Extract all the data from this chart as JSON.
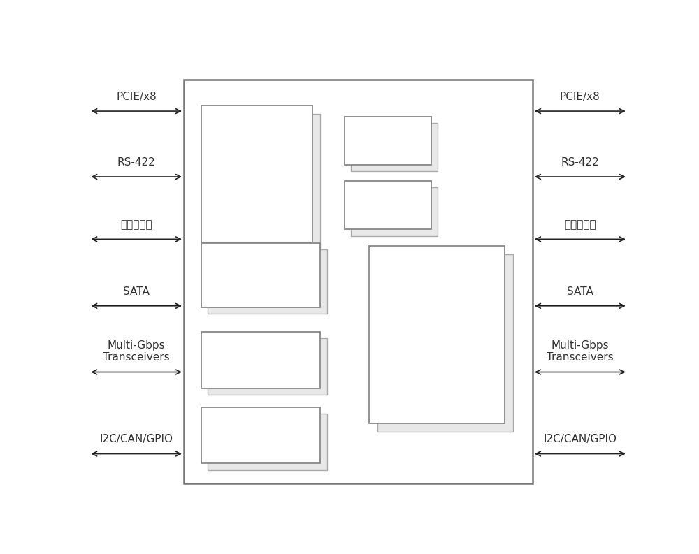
{
  "bg_color": "#ffffff",
  "border_color": "#666666",
  "box_edge_color": "#888888",
  "box_fill": "#ffffff",
  "shadow_edge": "#aaaaaa",
  "shadow_fill": "#e8e8e8",
  "text_color": "#333333",
  "aeroflex_text_color": "#558888",
  "sirf_text_color": "#555555",
  "arrow_color": "#222222",
  "left_labels": [
    "PCIE/x8",
    "RS-422",
    "以太网接口",
    "SATA",
    "Multi-Gbps\nTransceivers",
    "I2C/CAN/GPIO"
  ],
  "right_labels": [
    "PCIE/x8",
    "RS-422",
    "以太网接口",
    "SATA",
    "Multi-Gbps\nTransceivers",
    "I2C/CAN/GPIO"
  ],
  "font_size": 11,
  "label_font_size": 11
}
